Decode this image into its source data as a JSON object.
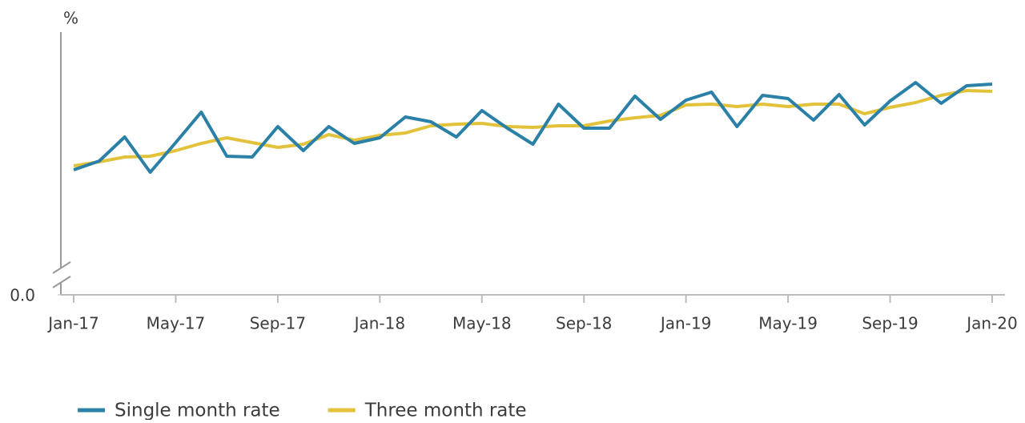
{
  "chart_data": {
    "type": "line",
    "y_axis_label": "%",
    "categories": [
      "Jan-17",
      null,
      null,
      null,
      "May-17",
      null,
      null,
      null,
      "Sep-17",
      null,
      null,
      null,
      "Jan-18",
      null,
      null,
      null,
      "May-18",
      null,
      null,
      null,
      "Sep-18",
      null,
      null,
      null,
      "Jan-19",
      null,
      null,
      null,
      "May-19",
      null,
      null,
      null,
      "Sep-19",
      null,
      null,
      null,
      "Jan-20"
    ],
    "series": [
      {
        "name": "Single month rate",
        "color": "#2a80a6",
        "values": [
          1.56,
          1.67,
          1.97,
          1.53,
          1.9,
          2.28,
          1.73,
          1.72,
          2.1,
          1.8,
          2.1,
          1.89,
          1.96,
          2.22,
          2.16,
          1.97,
          2.3,
          2.08,
          1.88,
          2.38,
          2.08,
          2.08,
          2.48,
          2.19,
          2.43,
          2.53,
          2.1,
          2.49,
          2.45,
          2.18,
          2.5,
          2.12,
          2.42,
          2.65,
          2.39,
          2.61,
          2.63
        ]
      },
      {
        "name": "Three month rate",
        "color": "#e3c23b",
        "values": [
          1.61,
          1.66,
          1.72,
          1.73,
          1.8,
          1.89,
          1.96,
          1.9,
          1.84,
          1.88,
          2.0,
          1.93,
          1.99,
          2.02,
          2.11,
          2.13,
          2.14,
          2.1,
          2.09,
          2.11,
          2.11,
          2.17,
          2.21,
          2.24,
          2.37,
          2.38,
          2.35,
          2.38,
          2.35,
          2.38,
          2.38,
          2.26,
          2.34,
          2.4,
          2.49,
          2.55,
          2.54
        ]
      }
    ],
    "ylim": [
      0,
      3.28
    ],
    "yticks": [
      {
        "value": 0,
        "label": "0.0"
      }
    ],
    "axis_break": true,
    "legend": "bottom-left"
  }
}
